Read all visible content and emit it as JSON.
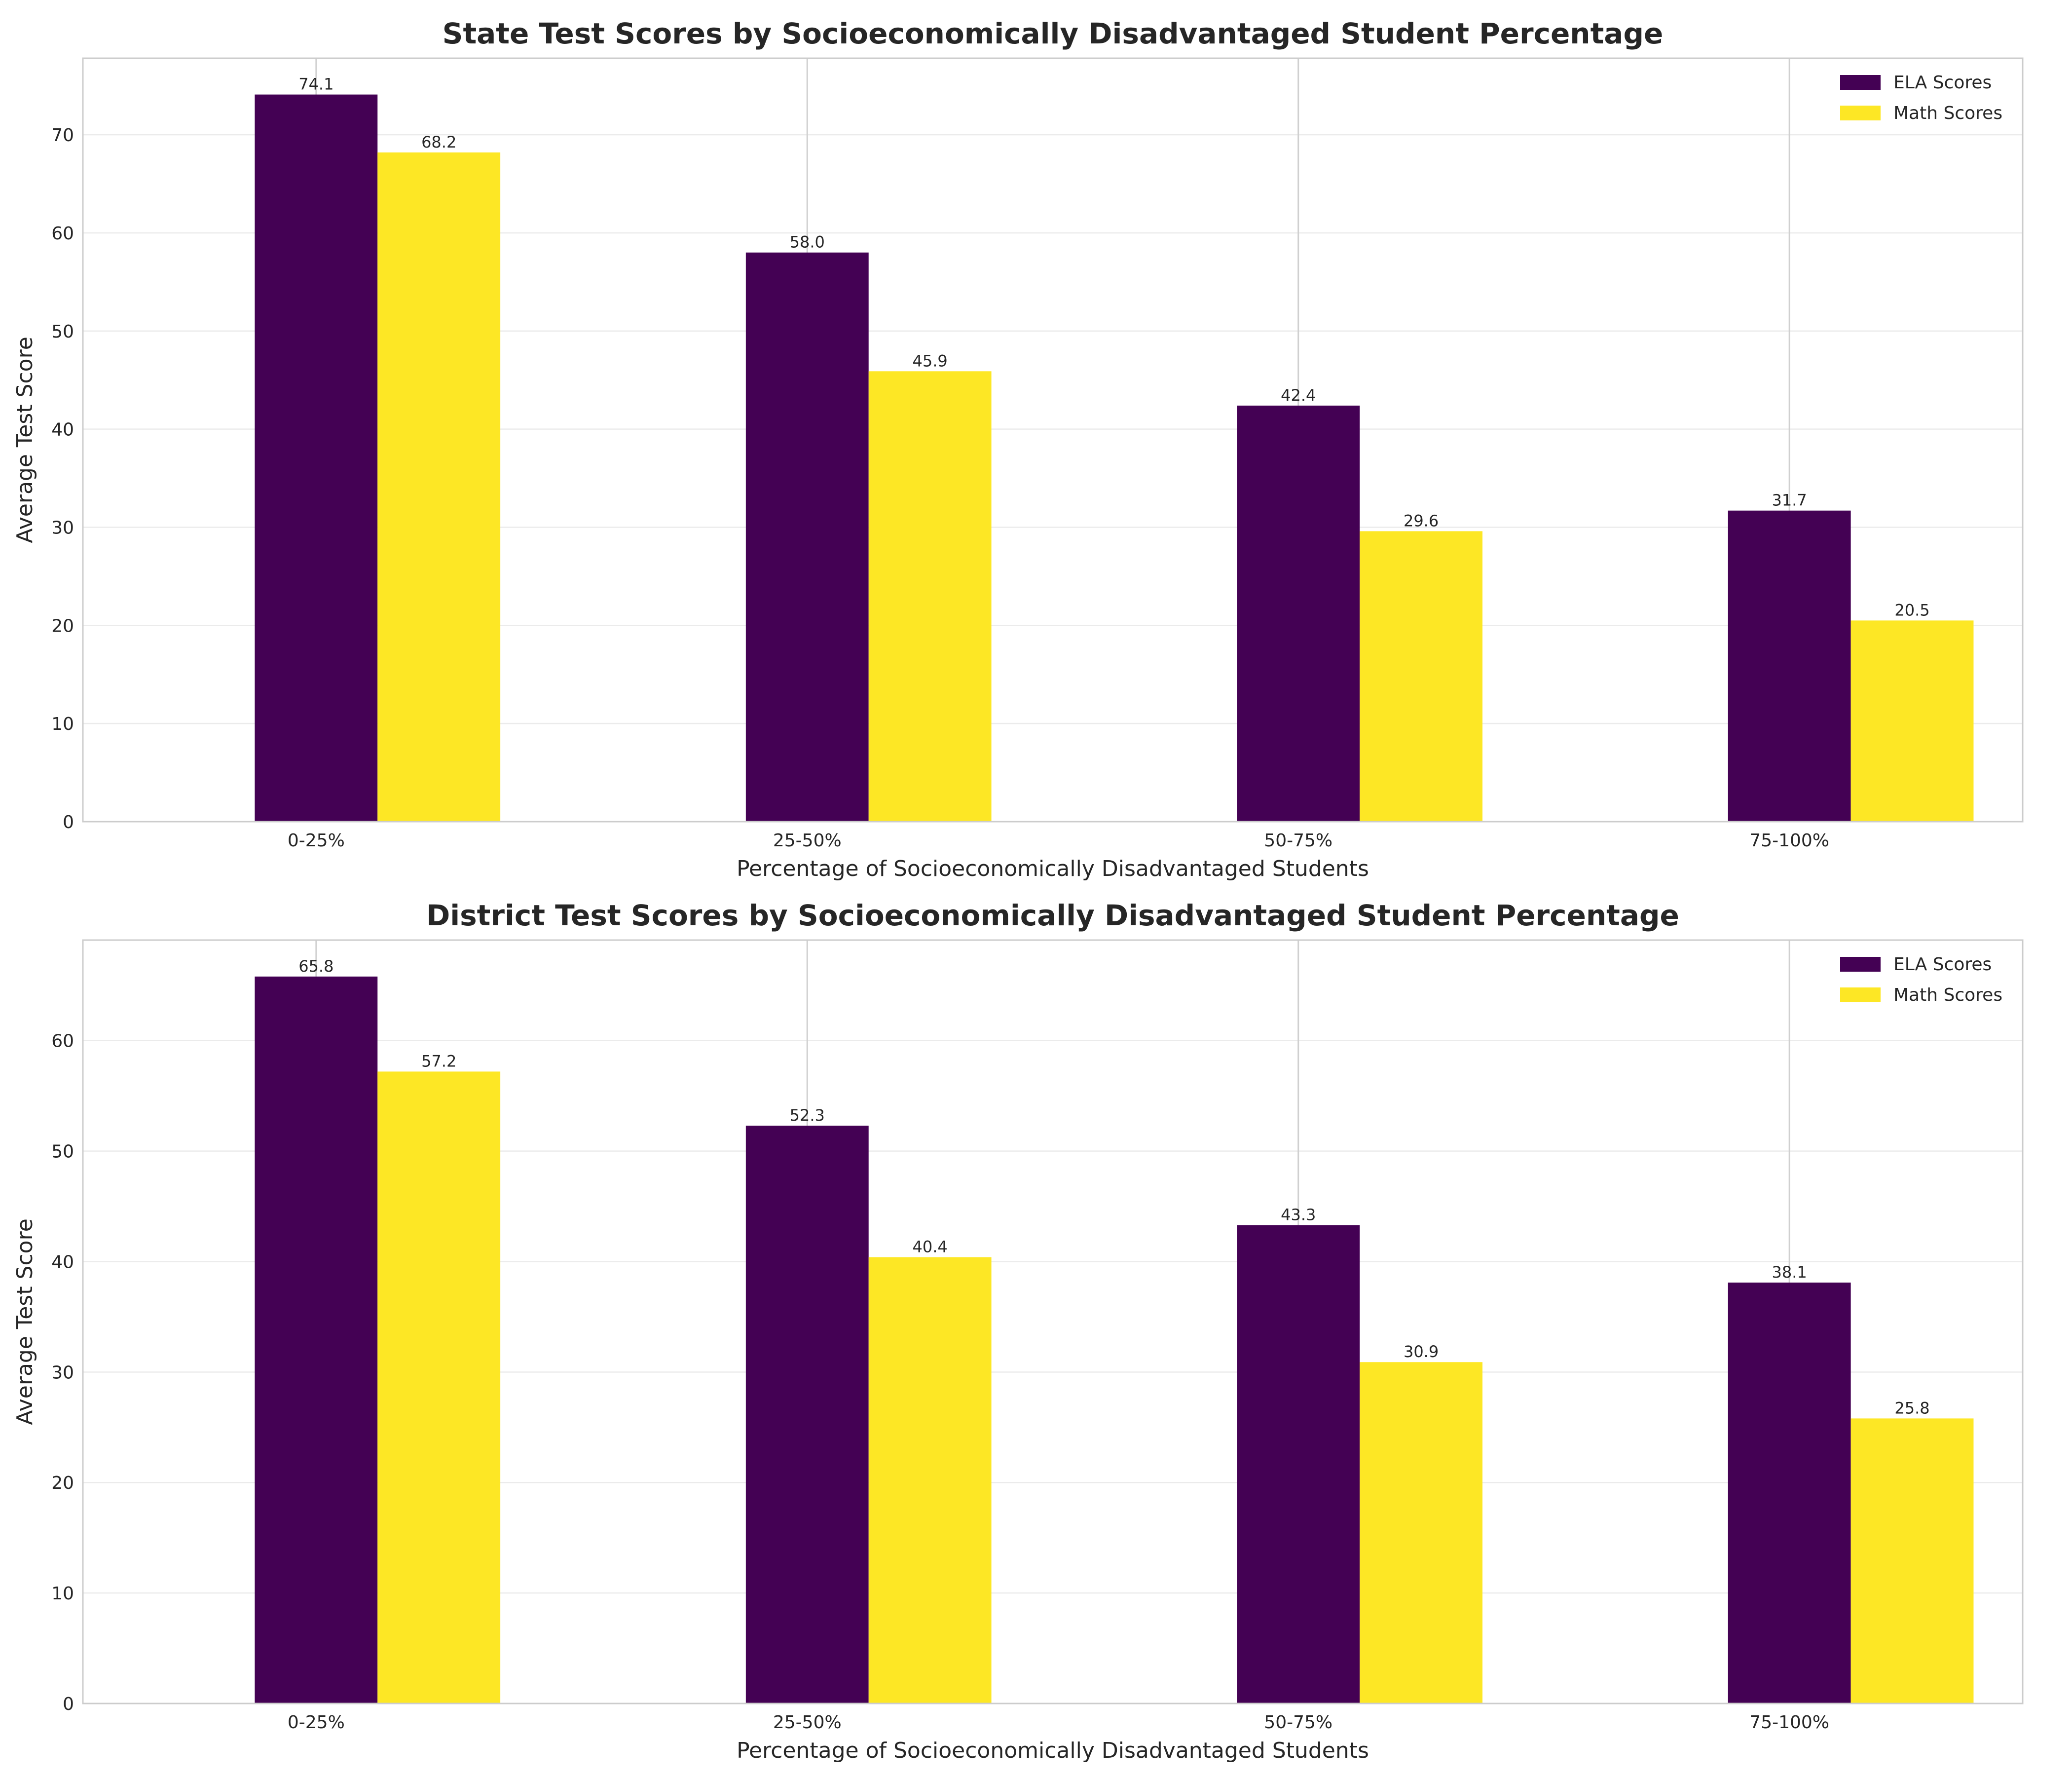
{
  "chart_data": [
    {
      "type": "bar",
      "title": "State Test Scores by Socioeconomically Disadvantaged Student Percentage",
      "xlabel": "Percentage of Socioeconomically Disadvantaged Students",
      "ylabel": "Average Test Score",
      "categories": [
        "0-25%",
        "25-50%",
        "50-75%",
        "75-100%"
      ],
      "series": [
        {
          "name": "ELA Scores",
          "color": "#440154",
          "values": [
            74.1,
            58.0,
            42.4,
            31.7
          ]
        },
        {
          "name": "Math Scores",
          "color": "#fde725",
          "values": [
            68.2,
            45.9,
            29.6,
            20.5
          ]
        }
      ],
      "yticks": [
        0,
        10,
        20,
        30,
        40,
        50,
        60,
        70
      ],
      "ylim": [
        0,
        77.8
      ],
      "grid": true,
      "legend": "top-right"
    },
    {
      "type": "bar",
      "title": "District Test Scores by Socioeconomically Disadvantaged Student Percentage",
      "xlabel": "Percentage of Socioeconomically Disadvantaged Students",
      "ylabel": "Average Test Score",
      "categories": [
        "0-25%",
        "25-50%",
        "50-75%",
        "75-100%"
      ],
      "series": [
        {
          "name": "ELA Scores",
          "color": "#440154",
          "values": [
            65.8,
            52.3,
            43.3,
            38.1
          ]
        },
        {
          "name": "Math Scores",
          "color": "#fde725",
          "values": [
            57.2,
            40.4,
            30.9,
            25.8
          ]
        }
      ],
      "yticks": [
        0,
        10,
        20,
        30,
        40,
        50,
        60
      ],
      "ylim": [
        0,
        69.1
      ],
      "grid": true,
      "legend": "top-right"
    }
  ]
}
